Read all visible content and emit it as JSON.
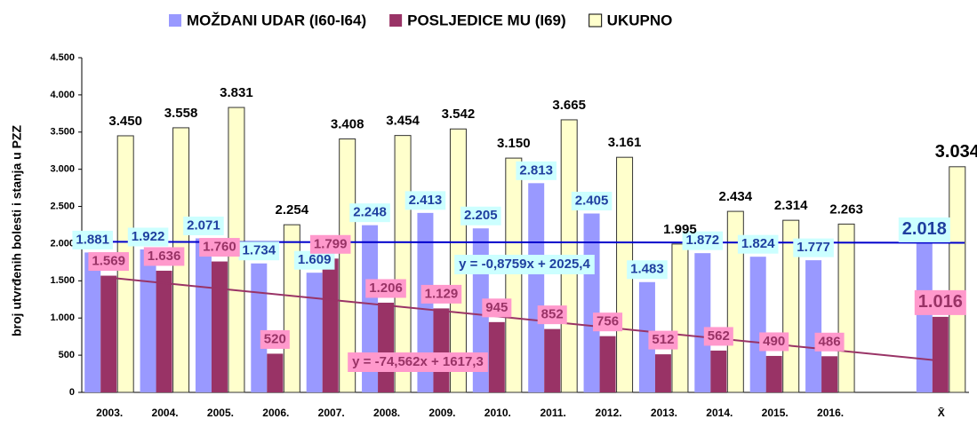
{
  "chart_data": {
    "type": "bar",
    "y_label": "broj utvrđenih bolesti i stanja u PZZ",
    "categories": [
      "2003.",
      "2004.",
      "2005.",
      "2006.",
      "2007.",
      "2008.",
      "2009.",
      "2010.",
      "2011.",
      "2012.",
      "2013.",
      "2014.",
      "2015.",
      "2016.",
      null,
      "X̄"
    ],
    "series": [
      {
        "name": "MOŽDANI UDAR (I60-I64)",
        "color": "#9999ff",
        "values": [
          1881,
          1922,
          2071,
          1734,
          1609,
          2248,
          2413,
          2205,
          2813,
          2405,
          1483,
          1872,
          1824,
          1777,
          null,
          2018
        ],
        "value_labels": [
          "1.881",
          "1.922",
          "2.071",
          "1.734",
          "1.609",
          "2.248",
          "2.413",
          "2.205",
          "2.813",
          "2.405",
          "1.483",
          "1.872",
          "1.824",
          "1.777",
          null,
          "2.018"
        ]
      },
      {
        "name": "POSLJEDICE MU (I69)",
        "color": "#993366",
        "values": [
          1569,
          1636,
          1760,
          520,
          1799,
          1206,
          1129,
          945,
          852,
          756,
          512,
          562,
          490,
          486,
          null,
          1016
        ],
        "value_labels": [
          "1.569",
          "1.636",
          "1.760",
          "520",
          "1.799",
          "1.206",
          "1.129",
          "945",
          "852",
          "756",
          "512",
          "562",
          "490",
          "486",
          null,
          "1.016"
        ]
      },
      {
        "name": "UKUPNO",
        "color": "#ffffcc",
        "values": [
          3450,
          3558,
          3831,
          2254,
          3408,
          3454,
          3542,
          3150,
          3665,
          3161,
          1995,
          2434,
          2314,
          2263,
          null,
          3034
        ],
        "value_labels": [
          "3.450",
          "3.558",
          "3.831",
          "2.254",
          "3.408",
          "3.454",
          "3.542",
          "3.150",
          "3.665",
          "3.161",
          "1.995",
          "2.434",
          "2.314",
          "2.263",
          null,
          "3.034"
        ]
      }
    ],
    "trendlines": [
      {
        "label": "y = -0,8759x + 2025,4",
        "slope": -0.8759,
        "intercept": 2025.4,
        "color": "#0000cc"
      },
      {
        "label": "y = -74,562x + 1617,3",
        "slope": -74.562,
        "intercept": 1617.3,
        "color": "#993366"
      }
    ],
    "ylim": [
      0,
      4500
    ],
    "yticks": [
      0,
      500,
      {
        "value": 1000,
        "label": "1.000"
      },
      {
        "value": 1500,
        "label": "1.500"
      },
      {
        "value": 2000,
        "label": "2.000"
      },
      {
        "value": 2500,
        "label": "2.500"
      },
      {
        "value": 3000,
        "label": "3.000"
      },
      {
        "value": 3500,
        "label": "3.500"
      },
      {
        "value": 4000,
        "label": "4.000"
      },
      {
        "value": 4500,
        "label": "4.500"
      }
    ]
  }
}
